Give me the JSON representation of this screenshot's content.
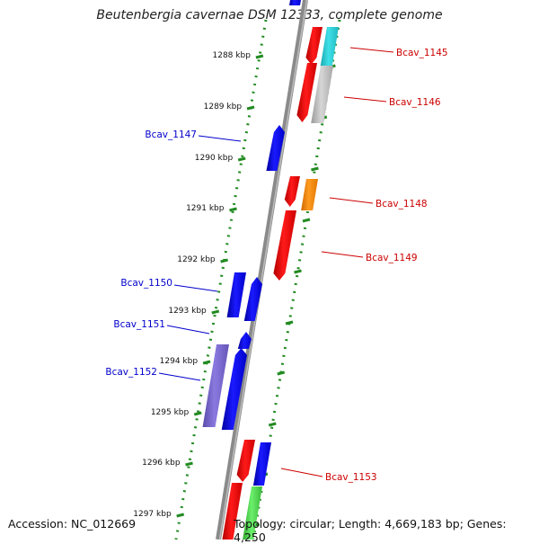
{
  "header": {
    "title": "Beutenbergia cavernae DSM 12333, complete genome"
  },
  "footer": {
    "accession": "Accession: NC_012669",
    "summary": "Topology: circular; Length: 4,669,183 bp; Genes: 4,250"
  },
  "colors": {
    "forward_label": "#0000cc",
    "reverse_label": "#cc0000",
    "tick": "#228b22",
    "backbone": "#888888"
  },
  "kbp_ticks": [
    "1288 kbp",
    "1289 kbp",
    "1290 kbp",
    "1291 kbp",
    "1292 kbp",
    "1293 kbp",
    "1294 kbp",
    "1295 kbp",
    "1296 kbp",
    "1297 kbp"
  ],
  "genes": [
    {
      "label": "Bcav_1145",
      "strand": "reverse"
    },
    {
      "label": "Bcav_1146",
      "strand": "reverse"
    },
    {
      "label": "Bcav_1147",
      "strand": "forward"
    },
    {
      "label": "Bcav_1148",
      "strand": "reverse"
    },
    {
      "label": "Bcav_1149",
      "strand": "reverse"
    },
    {
      "label": "Bcav_1150",
      "strand": "forward"
    },
    {
      "label": "Bcav_1151",
      "strand": "forward"
    },
    {
      "label": "Bcav_1152",
      "strand": "forward"
    },
    {
      "label": "Bcav_1153",
      "strand": "reverse"
    }
  ]
}
